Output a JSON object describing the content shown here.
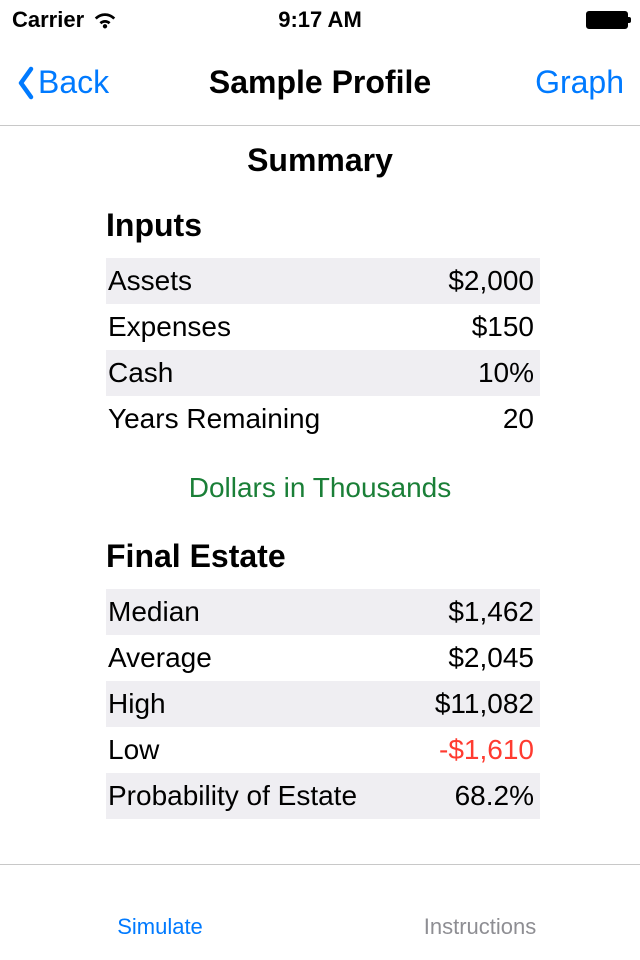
{
  "status": {
    "carrier": "Carrier",
    "time": "9:17 AM"
  },
  "nav": {
    "back_label": "Back",
    "title": "Sample Profile",
    "right_label": "Graph"
  },
  "summary": {
    "title": "Summary",
    "inputs_heading": "Inputs",
    "inputs": [
      {
        "label": "Assets",
        "value": "$2,000",
        "shaded": true
      },
      {
        "label": "Expenses",
        "value": "$150",
        "shaded": false
      },
      {
        "label": "Cash",
        "value": "10%",
        "shaded": true
      },
      {
        "label": "Years Remaining",
        "value": "20",
        "shaded": false
      }
    ],
    "note": "Dollars in Thousands",
    "estate_heading": "Final Estate",
    "estate": [
      {
        "label": "Median",
        "value": "$1,462",
        "shaded": true,
        "neg": false
      },
      {
        "label": "Average",
        "value": "$2,045",
        "shaded": false,
        "neg": false
      },
      {
        "label": "High",
        "value": "$11,082",
        "shaded": true,
        "neg": false
      },
      {
        "label": "Low",
        "value": "-$1,610",
        "shaded": false,
        "neg": true
      },
      {
        "label": "Probability of Estate",
        "value": "68.2%",
        "shaded": true,
        "neg": false
      }
    ]
  },
  "tabs": {
    "simulate": "Simulate",
    "instructions": "Instructions"
  },
  "colors": {
    "ios_blue": "#007aff",
    "shade": "#efeef2",
    "note_green": "#1a7f37",
    "negative_red": "#ff3b30",
    "separator": "#c8c8c8",
    "inactive": "#8e8e93"
  }
}
